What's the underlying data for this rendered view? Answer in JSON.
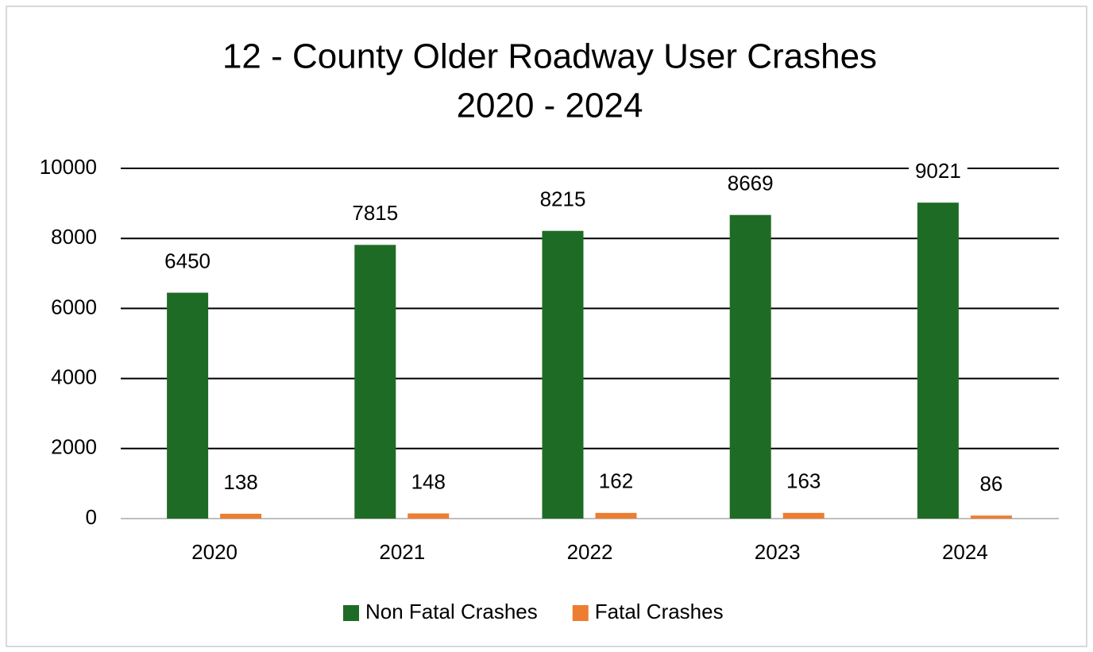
{
  "chart_data": {
    "type": "bar",
    "title": "12 - County Older Roadway User Crashes",
    "subtitle": "2020 - 2024",
    "categories": [
      "2020",
      "2021",
      "2022",
      "2023",
      "2024"
    ],
    "series": [
      {
        "name": "Non Fatal Crashes",
        "color": "#1e6b25",
        "values": [
          6450,
          7815,
          8215,
          8669,
          9021
        ]
      },
      {
        "name": "Fatal Crashes",
        "color": "#ed7d31",
        "values": [
          138,
          148,
          162,
          163,
          86
        ]
      }
    ],
    "ylim": [
      0,
      10000
    ],
    "yticks": [
      0,
      2000,
      4000,
      6000,
      8000,
      10000
    ],
    "grid": true,
    "legend": "bottom"
  }
}
